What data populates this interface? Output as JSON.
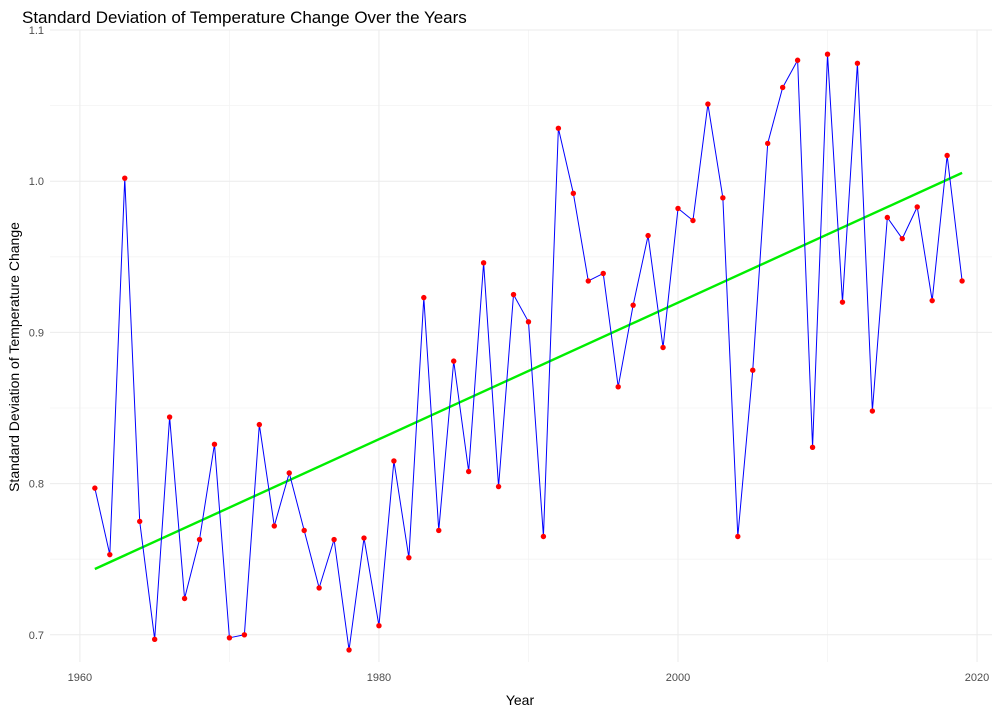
{
  "chart_data": {
    "type": "line",
    "title": "Standard Deviation of Temperature Change Over the Years",
    "xlabel": "Year",
    "ylabel": "Standard Deviation of Temperature Change",
    "xlim": [
      1958,
      2021
    ],
    "ylim": [
      0.682,
      1.1
    ],
    "x_ticks": [
      1960,
      1980,
      2000,
      2020
    ],
    "y_ticks": [
      0.7,
      0.8,
      0.9,
      1.0,
      1.1
    ],
    "x_tick_labels": [
      "1960",
      "1980",
      "2000",
      "2020"
    ],
    "y_tick_labels": [
      "0.7",
      "0.8",
      "0.9",
      "1.0",
      "1.1"
    ],
    "grid": true,
    "line_color": "#0000ff",
    "point_color": "#ff0000",
    "trend_color": "#00ee00",
    "x": [
      1961,
      1962,
      1963,
      1964,
      1965,
      1966,
      1967,
      1968,
      1969,
      1970,
      1971,
      1972,
      1973,
      1974,
      1975,
      1976,
      1977,
      1978,
      1979,
      1980,
      1981,
      1982,
      1983,
      1984,
      1985,
      1986,
      1987,
      1988,
      1989,
      1990,
      1991,
      1992,
      1993,
      1994,
      1995,
      1996,
      1997,
      1998,
      1999,
      2000,
      2001,
      2002,
      2003,
      2004,
      2005,
      2006,
      2007,
      2008,
      2009,
      2010,
      2011,
      2012,
      2013,
      2014,
      2015,
      2016,
      2017,
      2018,
      2019
    ],
    "values": [
      0.797,
      0.753,
      1.002,
      0.775,
      0.697,
      0.844,
      0.724,
      0.763,
      0.826,
      0.698,
      0.7,
      0.839,
      0.772,
      0.807,
      0.769,
      0.731,
      0.763,
      0.69,
      0.764,
      0.706,
      0.815,
      0.751,
      0.923,
      0.769,
      0.881,
      0.808,
      0.946,
      0.798,
      0.925,
      0.907,
      0.765,
      1.035,
      0.992,
      0.934,
      0.939,
      0.864,
      0.918,
      0.964,
      0.89,
      0.982,
      0.974,
      1.051,
      0.989,
      0.765,
      0.875,
      1.025,
      1.062,
      1.08,
      0.824,
      1.084,
      0.92,
      1.078,
      0.848,
      0.976,
      0.962,
      0.983,
      0.921,
      1.017,
      0.934
    ],
    "trend": {
      "x": [
        1961,
        2019
      ],
      "y": [
        0.7435,
        1.0055
      ]
    }
  }
}
